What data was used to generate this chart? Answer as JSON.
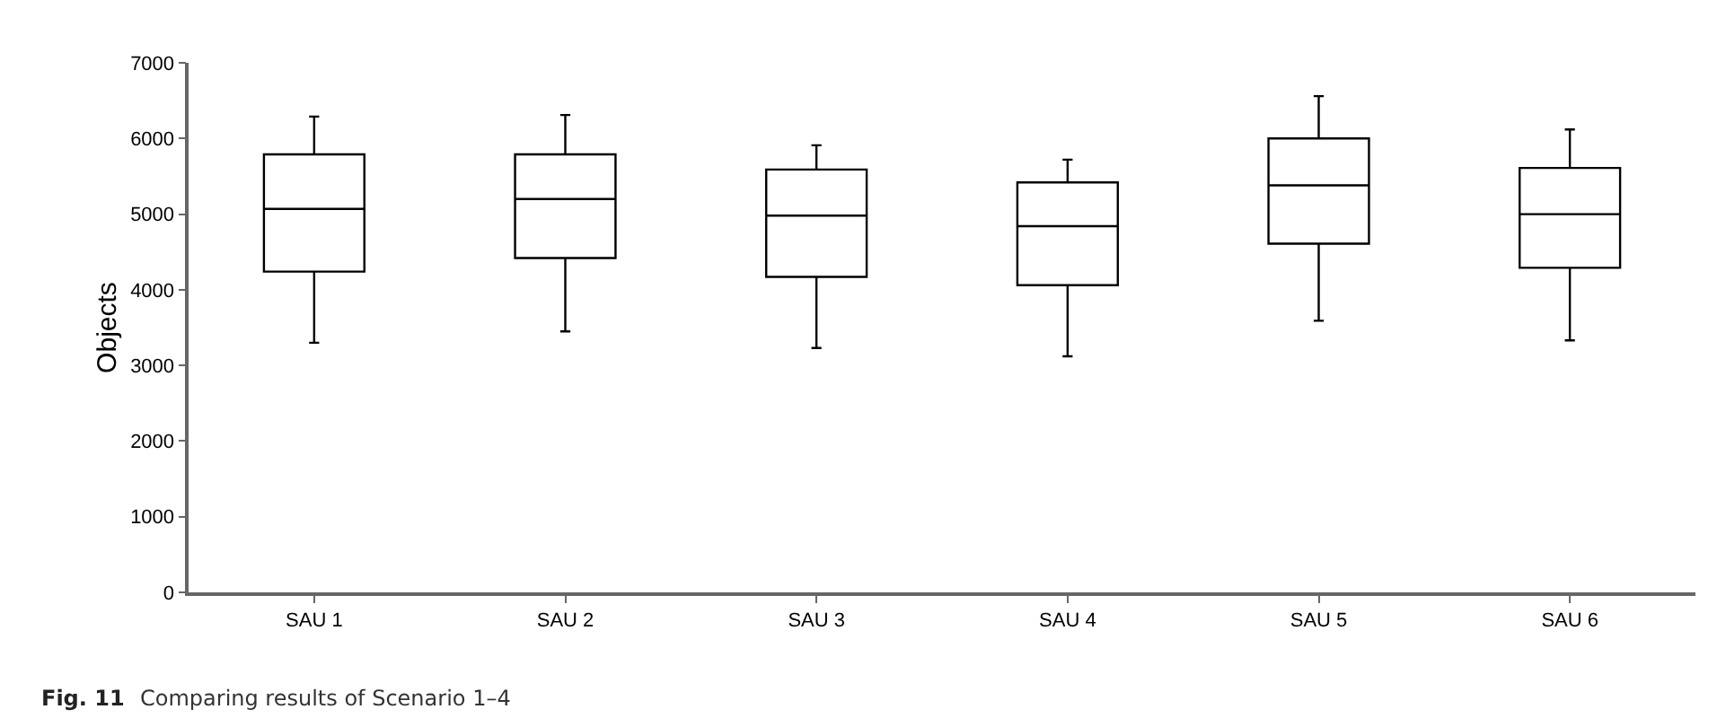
{
  "chart_data": {
    "type": "box",
    "ylabel": "Objects",
    "categories": [
      "SAU 1",
      "SAU 2",
      "SAU 3",
      "SAU 4",
      "SAU 5",
      "SAU 6"
    ],
    "boxes": [
      {
        "low": 3300,
        "q1": 4240,
        "median": 5070,
        "q3": 5790,
        "high": 6290
      },
      {
        "low": 3450,
        "q1": 4420,
        "median": 5200,
        "q3": 5790,
        "high": 6310
      },
      {
        "low": 3230,
        "q1": 4170,
        "median": 4980,
        "q3": 5590,
        "high": 5910
      },
      {
        "low": 3120,
        "q1": 4060,
        "median": 4840,
        "q3": 5420,
        "high": 5720
      },
      {
        "low": 3590,
        "q1": 4610,
        "median": 5380,
        "q3": 6000,
        "high": 6560
      },
      {
        "low": 3330,
        "q1": 4290,
        "median": 5000,
        "q3": 5610,
        "high": 6120
      }
    ],
    "color": "#000000",
    "ylim": [
      0,
      7000
    ],
    "yticks": [
      0,
      1000,
      2000,
      3000,
      4000,
      5000,
      6000,
      7000
    ],
    "annotations": [
      "Fig. 11",
      "Comparing results of Scenario 1–4"
    ]
  }
}
